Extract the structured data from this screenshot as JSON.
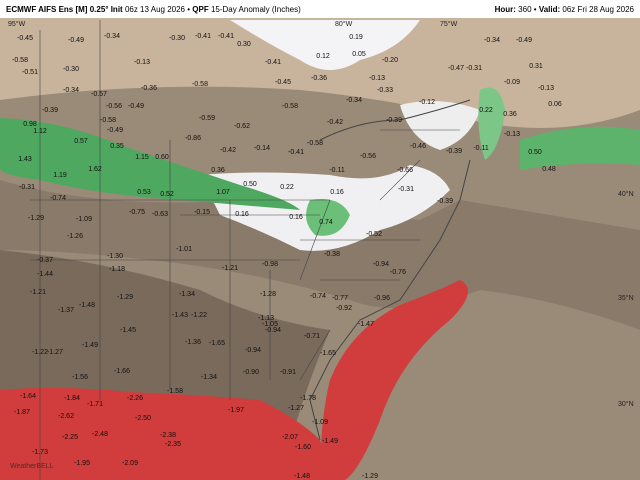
{
  "header": {
    "model": "ECMWF AIFS Ens [M] 0.25°",
    "init_label": "Init",
    "init": "06z 13 Aug 2026",
    "separator": "•",
    "product_label": "QPF",
    "product": "15-Day Anomaly (Inches)",
    "hour_label": "Hour:",
    "hour": "360",
    "valid_label": "Valid:",
    "valid": "06z Fri 28 Aug 2026"
  },
  "map": {
    "grid_labels": [
      "95°W",
      "80°W",
      "75°W",
      "40°N",
      "35°N",
      "30°N"
    ],
    "watermark": "WeatherBELL",
    "labels": [
      "-0.45",
      "-0.49",
      "-0.34",
      "-0.30",
      "-0.41",
      "-0.41",
      "0.30",
      "0.19",
      "-0.34",
      "-0.49",
      "-0.58",
      "-0.51",
      "-0.30",
      "-0.13",
      "-0.41",
      "0.12",
      "0.05",
      "-0.20",
      "-0.47",
      "-0.31",
      "0.31",
      "-0.09",
      "-0.13",
      "-0.34",
      "-0.57",
      "-0.36",
      "-0.58",
      "-0.45",
      "-0.36",
      "-0.13",
      "-0.33",
      "-0.39",
      "-0.56",
      "-0.49",
      "-0.58",
      "-0.34",
      "-0.12",
      "0.22",
      "0.06",
      "-0.58",
      "-0.49",
      "-0.59",
      "-0.62",
      "-0.42",
      "-0.39",
      "0.36",
      "-0.13",
      "0.98",
      "1.12",
      "0.57",
      "0.35",
      "-0.86",
      "-0.58",
      "-0.46",
      "-0.39",
      "-0.11",
      "-0.42",
      "-0.14",
      "-0.41",
      "1.43",
      "1.15",
      "0.60",
      "-0.56",
      "0.36",
      "-0.11",
      "-0.66",
      "1.19",
      "1.62",
      "0.48",
      "0.50",
      "-0.31",
      "-0.74",
      "0.53",
      "0.52",
      "1.07",
      "0.50",
      "0.22",
      "0.16",
      "-0.31",
      "-0.39",
      "-1.29",
      "-1.09",
      "-0.75",
      "-0.63",
      "-0.15",
      "0.16",
      "0.16",
      "0.74",
      "-0.52",
      "-1.26",
      "-1.01",
      "-0.38",
      "-0.94",
      "-0.37",
      "-1.30",
      "-1.44",
      "-1.18",
      "-1.21",
      "-0.98",
      "-0.76",
      "-1.21",
      "-1.29",
      "-1.34",
      "-1.28",
      "-0.74",
      "-0.77",
      "-0.96",
      "-1.37",
      "-1.48",
      "-1.43",
      "-1.22",
      "-0.92",
      "-1.45",
      "-1.13",
      "-1.05",
      "-0.94",
      "-0.71",
      "-1.47",
      "-1.36",
      "-1.65",
      "-1.49",
      "-1.22",
      "-1.27",
      "-0.94",
      "-1.65",
      "-1.66",
      "-1.56",
      "-1.34",
      "-0.90",
      "-0.91",
      "-1.64",
      "-1.84",
      "-1.71",
      "-2.26",
      "-1.58",
      "-1.78",
      "-1.87",
      "-2.62",
      "-2.50",
      "-1.97",
      "-1.27",
      "-1.09",
      "-2.25",
      "-2.48",
      "-2.38",
      "-2.35",
      "-2.07",
      "-1.49",
      "-1.60",
      "-1.73",
      "-1.95",
      "-2.09",
      "-1.48",
      "-1.29"
    ]
  }
}
